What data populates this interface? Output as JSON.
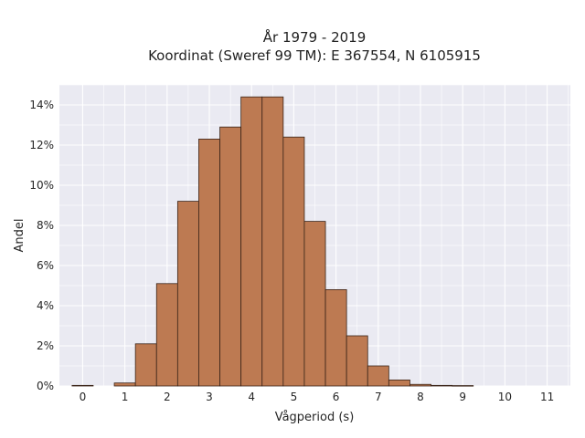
{
  "chart_data": {
    "type": "bar",
    "title": "År 1979 - 2019",
    "subtitle": "Koordinat (Sweref 99 TM): E 367554, N 6105915",
    "xlabel": "Vågperiod (s)",
    "ylabel": "Andel",
    "bin_width": 0.5,
    "bins": [
      {
        "start": 0.0,
        "value": 0.0003
      },
      {
        "start": 0.5,
        "value": 0.0
      },
      {
        "start": 1.0,
        "value": 0.0015
      },
      {
        "start": 1.5,
        "value": 0.021
      },
      {
        "start": 2.0,
        "value": 0.051
      },
      {
        "start": 2.5,
        "value": 0.092
      },
      {
        "start": 3.0,
        "value": 0.123
      },
      {
        "start": 3.5,
        "value": 0.129
      },
      {
        "start": 4.0,
        "value": 0.144
      },
      {
        "start": 4.5,
        "value": 0.144
      },
      {
        "start": 5.0,
        "value": 0.124
      },
      {
        "start": 5.5,
        "value": 0.082
      },
      {
        "start": 6.0,
        "value": 0.048
      },
      {
        "start": 6.5,
        "value": 0.025
      },
      {
        "start": 7.0,
        "value": 0.01
      },
      {
        "start": 7.5,
        "value": 0.003
      },
      {
        "start": 8.0,
        "value": 0.0008
      },
      {
        "start": 8.5,
        "value": 0.0003
      },
      {
        "start": 9.0,
        "value": 0.0002
      },
      {
        "start": 9.5,
        "value": 0.0
      },
      {
        "start": 10.0,
        "value": 0.0
      },
      {
        "start": 10.5,
        "value": 0.0
      },
      {
        "start": 11.0,
        "value": 0.0
      }
    ],
    "xlim": [
      -0.55,
      11.55
    ],
    "ylim": [
      0,
      0.15
    ],
    "x_ticks": [
      0,
      1,
      2,
      3,
      4,
      5,
      6,
      7,
      8,
      9,
      10,
      11
    ],
    "x_tick_labels": [
      "0",
      "1",
      "2",
      "3",
      "4",
      "5",
      "6",
      "7",
      "8",
      "9",
      "10",
      "11"
    ],
    "y_ticks": [
      0,
      0.02,
      0.04,
      0.06,
      0.08,
      0.1,
      0.12,
      0.14
    ],
    "y_tick_labels": [
      "0%",
      "2%",
      "4%",
      "6%",
      "8%",
      "10%",
      "12%",
      "14%"
    ],
    "grid": true,
    "colors": {
      "bar_fill": "#bd7a52",
      "bar_stroke": "#3a2418",
      "plot_background": "#eaeaf2",
      "grid": "#ffffff"
    }
  }
}
